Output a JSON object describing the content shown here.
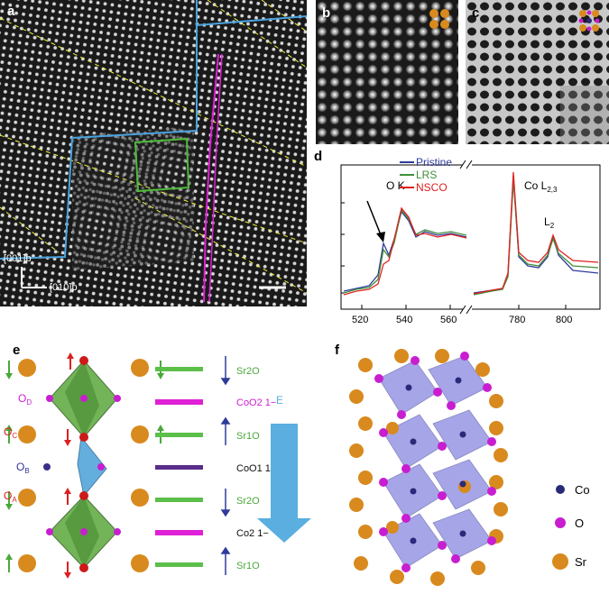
{
  "panels": {
    "a": {
      "label": "a",
      "axis_labels": [
        "[001]p",
        "[010]p"
      ],
      "colors": {
        "blue_frame": "#4aa3df",
        "green_box": "#4cbb3a",
        "magenta_line": "#e020d6",
        "yellow_dash": "#f2f23a"
      }
    },
    "b": {
      "label": "b"
    },
    "c": {
      "label": "c"
    },
    "d": {
      "label": "d",
      "legend": [
        {
          "name": "Pristine",
          "color": "#2f3b9a"
        },
        {
          "name": "LRS",
          "color": "#3f8f3a"
        },
        {
          "name": "NSCO",
          "color": "#e02020"
        }
      ],
      "annotations": {
        "ok": "O K",
        "co_main": "Co L",
        "co_sub": "2,3",
        "l2_main": "L",
        "l2_sub": "2"
      },
      "x_ticks_left": [
        "520",
        "540",
        "560"
      ],
      "x_ticks_right": [
        "780",
        "800"
      ]
    },
    "e": {
      "label": "e",
      "site_labels": [
        {
          "main": "O",
          "sub": "D",
          "color": "#cc22cc"
        },
        {
          "main": "O",
          "sub": "C",
          "color": "#dd2020"
        },
        {
          "main": "O",
          "sub": "B",
          "color": "#333399"
        },
        {
          "main": "O",
          "sub": "A",
          "color": "#dd2020"
        }
      ],
      "layers": [
        {
          "name": "Sr2O",
          "bar": "#5cbf4a",
          "text": "#4aa83a",
          "arrow": "down"
        },
        {
          "name": "CoO2 1−",
          "bar": "#e020d6",
          "text": "#cc22cc",
          "arrow": "none"
        },
        {
          "name": "Sr1O",
          "bar": "#5cbf4a",
          "text": "#4aa83a",
          "arrow": "up"
        },
        {
          "name": "CoO1 1+",
          "bar": "#5a2d8a",
          "text": "#111111",
          "arrow": "none"
        },
        {
          "name": "Sr2O",
          "bar": "#5cbf4a",
          "text": "#4aa83a",
          "arrow": "down"
        },
        {
          "name": "Co2 1−",
          "bar": "#e020d6",
          "text": "#111111",
          "arrow": "none"
        },
        {
          "name": "Sr1O",
          "bar": "#5cbf4a",
          "text": "#4aa83a",
          "arrow": "up"
        }
      ],
      "field_label": "E",
      "field_color": "#5aaee0"
    },
    "f": {
      "label": "f",
      "legend": [
        {
          "name": "Co",
          "color": "#2a2a7a"
        },
        {
          "name": "O",
          "color": "#c81ed0"
        },
        {
          "name": "Sr",
          "color": "#d88a1e"
        }
      ]
    }
  }
}
